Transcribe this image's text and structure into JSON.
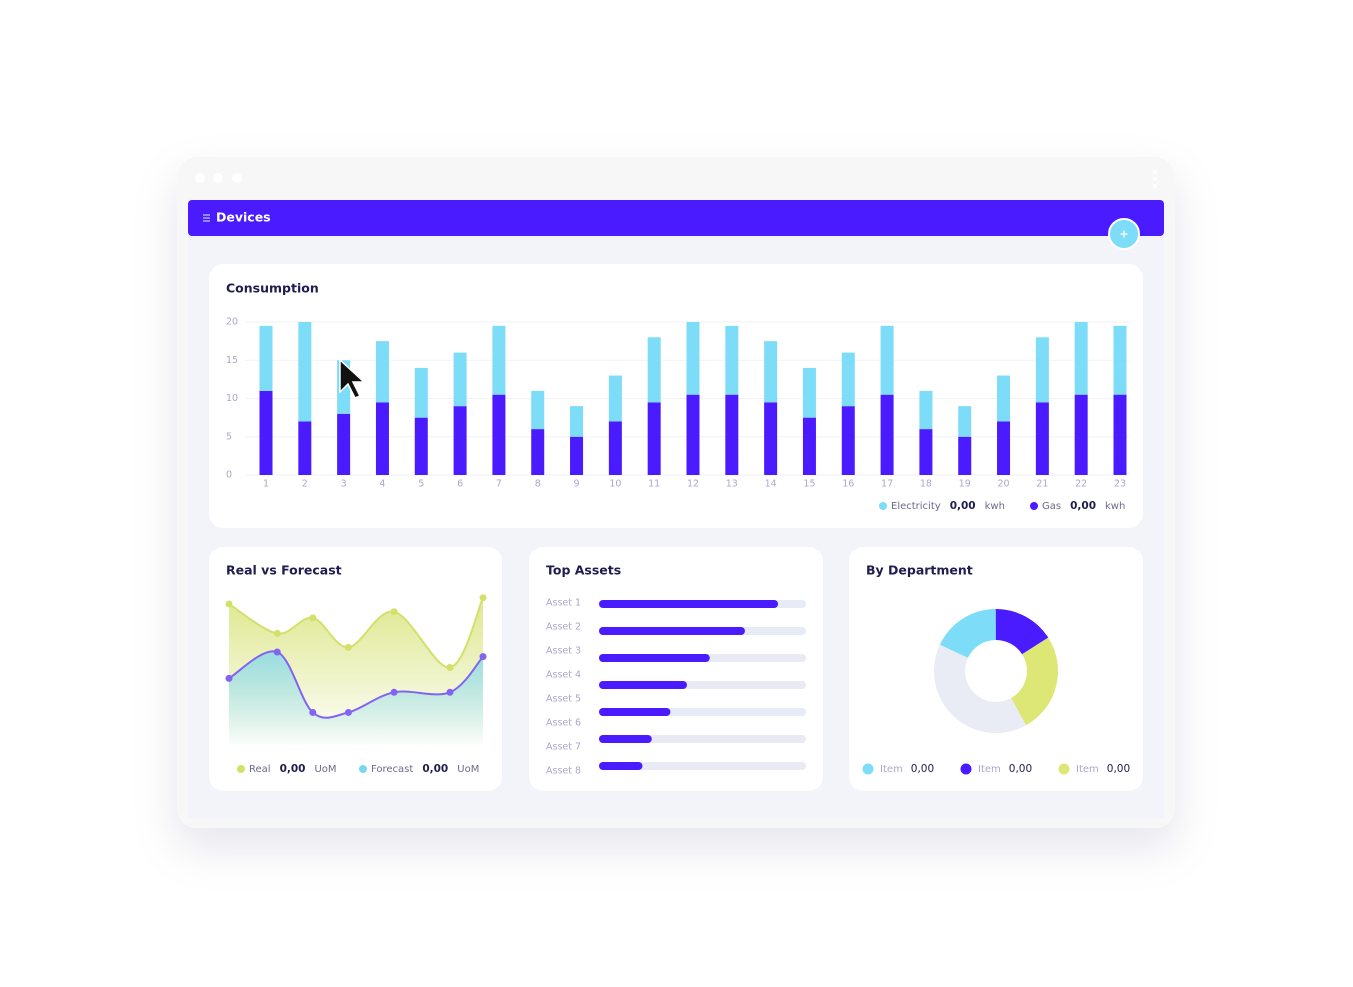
{
  "header": {
    "title": "Devices"
  },
  "chart_data": [
    {
      "type": "bar",
      "stacked": true,
      "title": "Consumption",
      "categories": [
        "1",
        "2",
        "3",
        "4",
        "5",
        "6",
        "7",
        "8",
        "9",
        "10",
        "11",
        "12",
        "13",
        "14",
        "15",
        "16",
        "17",
        "18",
        "19",
        "20",
        "21",
        "22",
        "23"
      ],
      "series": [
        {
          "name": "Electricity",
          "color": "#7ddcf7",
          "summary": "0,00",
          "unit": "kwh",
          "values": [
            8.5,
            13,
            7,
            8,
            6.5,
            7,
            9,
            5,
            4,
            6,
            8.5,
            9.5,
            9,
            8,
            6.5,
            7,
            9,
            5,
            4,
            6,
            8.5,
            9.5,
            9
          ]
        },
        {
          "name": "Gas",
          "color": "#4a1bff",
          "summary": "0,00",
          "unit": "kwh",
          "values": [
            11,
            7,
            8,
            9.5,
            7.5,
            9,
            10.5,
            6,
            5,
            7,
            9.5,
            10.5,
            10.5,
            9.5,
            7.5,
            9,
            10.5,
            6,
            5,
            7,
            9.5,
            10.5,
            10.5
          ]
        }
      ],
      "ylim": [
        0,
        20
      ],
      "yticks": [
        0,
        5,
        10,
        15,
        20
      ],
      "grid": true
    },
    {
      "type": "area",
      "title": "Real vs Forecast",
      "x": [
        0,
        19,
        33,
        47,
        65,
        87,
        100
      ],
      "xlim": [
        0,
        100
      ],
      "ylim": [
        0,
        100
      ],
      "series": [
        {
          "name": "Real",
          "color": "#d3e06a",
          "area_color": "#d3e06a",
          "summary": "0,00",
          "unit": "UoM",
          "values": [
            91,
            72,
            82,
            63,
            86,
            50,
            95
          ]
        },
        {
          "name": "Forecast",
          "color": "#8263f2",
          "area_color": "#7dd6f0",
          "summary": "0,00",
          "unit": "UoM",
          "values": [
            43,
            60,
            21,
            21,
            34,
            34,
            57
          ]
        }
      ]
    },
    {
      "type": "hbar",
      "title": "Top Assets",
      "categories": [
        "Asset 1",
        "Asset 2",
        "Asset 3",
        "Asset 4",
        "Asset 5",
        "Asset 6",
        "Asset 7",
        "Asset 8"
      ],
      "values": [
        86.5,
        70.5,
        53.5,
        42.5,
        34.5,
        25.5,
        21,
        null
      ],
      "color": "#4a1bff",
      "track_color": "#e8eaf6",
      "xlim": [
        0,
        100
      ]
    },
    {
      "type": "donut",
      "title": "By Department",
      "categories": [
        "Item",
        "Item",
        "Item",
        null
      ],
      "values": [
        18,
        16,
        26,
        40
      ],
      "colors": [
        "#7ddcf7",
        "#4a1bff",
        "#dce775",
        "#e9ebf5"
      ],
      "legend_values": [
        "0,00",
        "0,00",
        "0,00",
        null
      ]
    }
  ]
}
